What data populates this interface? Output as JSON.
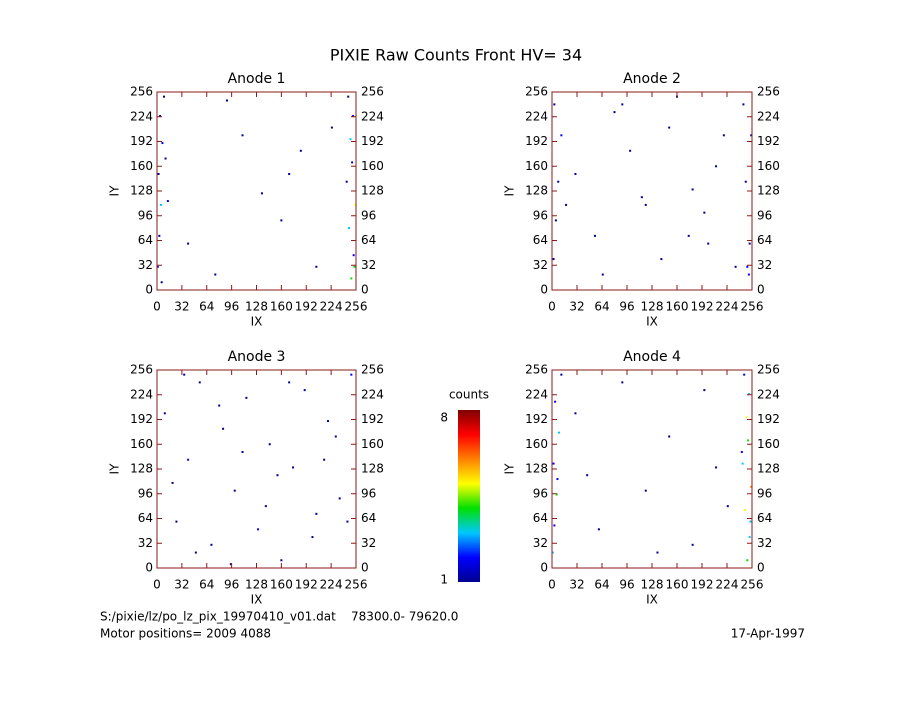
{
  "title": "PIXIE Raw Counts Front HV= 34",
  "chart_data": [
    {
      "type": "scatter",
      "title": "Anode 1",
      "xlabel": "IX",
      "ylabel": "IY",
      "xlim": [
        0,
        256
      ],
      "ylim": [
        0,
        256
      ],
      "xticks": [
        0,
        32,
        64,
        96,
        128,
        160,
        192,
        224,
        256
      ],
      "yticks": [
        0,
        32,
        64,
        96,
        128,
        160,
        192,
        224,
        256
      ],
      "x": [
        1,
        3,
        5,
        2,
        7,
        4,
        9,
        14,
        6,
        11,
        250,
        253,
        247,
        255,
        244,
        251,
        249,
        252,
        246,
        254,
        40,
        75,
        110,
        135,
        160,
        185,
        205,
        225,
        90,
        170
      ],
      "y": [
        30,
        70,
        110,
        150,
        190,
        225,
        250,
        115,
        10,
        170,
        15,
        45,
        80,
        110,
        140,
        165,
        195,
        225,
        250,
        30,
        60,
        20,
        200,
        125,
        90,
        180,
        30,
        210,
        245,
        150
      ],
      "values": [
        2,
        1,
        3,
        1,
        2,
        1,
        1,
        2,
        1,
        1,
        4,
        2,
        3,
        5,
        1,
        2,
        3,
        2,
        1,
        4,
        1,
        1,
        1,
        1,
        1,
        1,
        1,
        1,
        1,
        1
      ]
    },
    {
      "type": "scatter",
      "title": "Anode 2",
      "xlabel": "IX",
      "ylabel": "IY",
      "xlim": [
        0,
        256
      ],
      "ylim": [
        0,
        256
      ],
      "xticks": [
        0,
        32,
        64,
        96,
        128,
        160,
        192,
        224,
        256
      ],
      "yticks": [
        0,
        32,
        64,
        96,
        128,
        160,
        192,
        224,
        256
      ],
      "x": [
        2,
        5,
        8,
        12,
        3,
        18,
        250,
        253,
        248,
        255,
        245,
        252,
        30,
        55,
        80,
        100,
        120,
        140,
        160,
        180,
        200,
        220,
        65,
        115,
        175,
        210,
        235,
        90,
        150,
        195
      ],
      "y": [
        40,
        90,
        140,
        200,
        240,
        110,
        30,
        60,
        140,
        200,
        240,
        20,
        150,
        70,
        230,
        180,
        110,
        40,
        250,
        130,
        60,
        200,
        20,
        120,
        70,
        160,
        30,
        240,
        210,
        100
      ],
      "values": [
        1,
        1,
        1,
        2,
        1,
        1,
        2,
        1,
        1,
        1,
        1,
        2,
        1,
        1,
        1,
        1,
        1,
        1,
        1,
        1,
        1,
        1,
        1,
        1,
        1,
        1,
        1,
        1,
        1,
        1
      ]
    },
    {
      "type": "scatter",
      "title": "Anode 3",
      "xlabel": "IX",
      "ylabel": "IY",
      "xlim": [
        0,
        256
      ],
      "ylim": [
        0,
        256
      ],
      "xticks": [
        0,
        32,
        64,
        96,
        128,
        160,
        192,
        224,
        256
      ],
      "yticks": [
        0,
        32,
        64,
        96,
        128,
        160,
        192,
        224,
        256
      ],
      "x": [
        10,
        25,
        40,
        55,
        70,
        85,
        100,
        115,
        130,
        145,
        160,
        175,
        190,
        205,
        220,
        235,
        250,
        20,
        50,
        80,
        110,
        140,
        170,
        200,
        230,
        35,
        95,
        155,
        215,
        245
      ],
      "y": [
        200,
        60,
        140,
        240,
        30,
        180,
        100,
        220,
        50,
        160,
        10,
        130,
        230,
        70,
        190,
        90,
        250,
        110,
        20,
        210,
        150,
        80,
        240,
        40,
        170,
        250,
        5,
        120,
        140,
        60
      ],
      "values": [
        1,
        1,
        2,
        1,
        1,
        1,
        1,
        1,
        2,
        1,
        1,
        1,
        1,
        1,
        1,
        1,
        2,
        1,
        1,
        1,
        1,
        1,
        1,
        1,
        1,
        1,
        1,
        1,
        1,
        1
      ]
    },
    {
      "type": "scatter",
      "title": "Anode 4",
      "xlabel": "IX",
      "ylabel": "IY",
      "xlim": [
        0,
        256
      ],
      "ylim": [
        0,
        256
      ],
      "xticks": [
        0,
        32,
        64,
        96,
        128,
        160,
        192,
        224,
        256
      ],
      "yticks": [
        0,
        32,
        64,
        96,
        128,
        160,
        192,
        224,
        256
      ],
      "x": [
        1,
        3,
        6,
        2,
        9,
        4,
        12,
        7,
        250,
        253,
        247,
        255,
        244,
        251,
        249,
        252,
        246,
        254,
        243,
        30,
        60,
        90,
        120,
        150,
        180,
        210,
        45,
        135,
        195,
        225
      ],
      "y": [
        20,
        55,
        95,
        135,
        175,
        215,
        250,
        115,
        10,
        40,
        75,
        105,
        135,
        165,
        195,
        225,
        250,
        60,
        150,
        200,
        50,
        240,
        100,
        170,
        30,
        130,
        120,
        20,
        230,
        80
      ],
      "values": [
        3,
        2,
        4,
        2,
        3,
        2,
        1,
        2,
        4,
        3,
        5,
        6,
        3,
        4,
        5,
        3,
        2,
        3,
        2,
        1,
        1,
        1,
        1,
        1,
        1,
        1,
        1,
        1,
        1,
        1
      ]
    }
  ],
  "colorbar": {
    "label": "counts",
    "lim": [
      1,
      8
    ],
    "ticks": [
      1,
      8
    ],
    "colors": [
      "#000090",
      "#0000ff",
      "#00c8ff",
      "#00e000",
      "#ffff00",
      "#ff8000",
      "#ff0000",
      "#800000"
    ]
  },
  "footer": {
    "file": "S:/pixie/lz/po_lz_pix_19970410_v01.dat    78300.0- 79620.0",
    "motor": "Motor positions= 2009 4088",
    "date": "17-Apr-1997"
  }
}
